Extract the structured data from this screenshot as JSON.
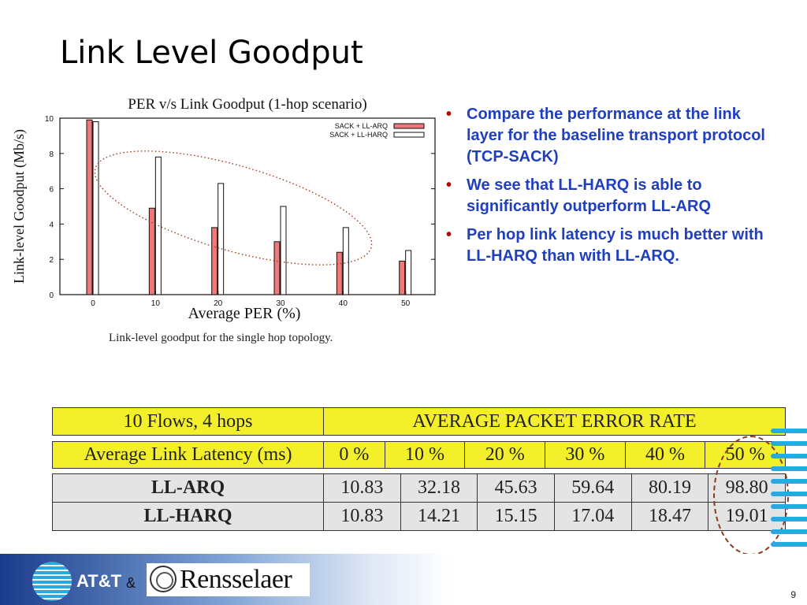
{
  "slide": {
    "title": "Link Level Goodput",
    "page_number": "9",
    "caption": "Link-level goodput for the single hop topology."
  },
  "bullets": [
    "Compare the performance at the link layer for the baseline transport protocol (TCP-SACK)",
    "We see that LL-HARQ is able to significantly outperform LL-ARQ",
    "Per hop link latency is much better with LL-HARQ than with LL-ARQ."
  ],
  "chart_data": {
    "type": "bar",
    "title": "PER v/s Link Goodput (1-hop scenario)",
    "xlabel": "Average PER (%)",
    "ylabel": "Link-level Goodput (Mb/s)",
    "categories": [
      "0",
      "10",
      "20",
      "30",
      "40",
      "50"
    ],
    "yticks": [
      "0",
      "2",
      "4",
      "6",
      "8",
      "10"
    ],
    "ylim": [
      0,
      10
    ],
    "legend_position": "top-right",
    "series": [
      {
        "name": "SACK + LL-ARQ",
        "color": "#f07878",
        "values": [
          9.9,
          4.9,
          3.8,
          3.0,
          2.4,
          1.9
        ]
      },
      {
        "name": "SACK + LL-HARQ",
        "color": "#ffffff",
        "values": [
          9.8,
          7.8,
          6.3,
          5.0,
          3.8,
          2.5
        ]
      }
    ]
  },
  "table": {
    "header_left": "10 Flows, 4 hops",
    "header_right": "AVERAGE PACKET ERROR RATE",
    "row_label": "Average Link Latency (ms)",
    "columns": [
      "0 %",
      "10 %",
      "20 %",
      "30 %",
      "40 %",
      "50 %"
    ],
    "rows": [
      {
        "label": "LL-ARQ",
        "values": [
          "10.83",
          "32.18",
          "45.63",
          "59.64",
          "80.19",
          "98.80"
        ]
      },
      {
        "label": "LL-HARQ",
        "values": [
          "10.83",
          "14.21",
          "15.15",
          "17.04",
          "18.47",
          "19.01"
        ]
      }
    ]
  },
  "footer": {
    "att_label": "AT&T",
    "ampersand": "&",
    "rpi_label": "Rensselaer"
  },
  "colors": {
    "bullet_text": "#1f3fbf",
    "bullet_dot": "#c00000",
    "table_header_bg": "#f3ef2a",
    "table_body_bg": "#e4e4e4",
    "highlight_oval": "#8b3a1a"
  }
}
